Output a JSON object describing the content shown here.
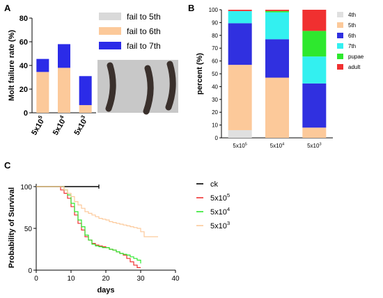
{
  "chart_data": [
    {
      "panel": "A",
      "type": "bar",
      "stacked": true,
      "ylabel": "Molt failure rate (%)",
      "ylim": [
        0,
        80
      ],
      "yticks": [
        0,
        20,
        40,
        60,
        80
      ],
      "categories": [
        "5x10^5",
        "5x10^4",
        "5x10^3"
      ],
      "category_labels": [
        {
          "base": "5x10",
          "exp": "5"
        },
        {
          "base": "5x10",
          "exp": "4"
        },
        {
          "base": "5x10",
          "exp": "3"
        }
      ],
      "series": [
        {
          "name": "fail to 5th",
          "color": "#d9d9d9",
          "values": [
            0,
            0,
            0
          ]
        },
        {
          "name": "fail to 6th",
          "color": "#fcc99a",
          "values": [
            34.5,
            38,
            6.5
          ]
        },
        {
          "name": "fail to 7th",
          "color": "#2b2be8",
          "values": [
            11,
            20,
            24.5
          ]
        }
      ],
      "legend_position": "top-right",
      "inset_photo": "three-larvae-photo"
    },
    {
      "panel": "B",
      "type": "bar",
      "stacked": true,
      "ylabel": "percent (%)",
      "ylim": [
        0,
        100
      ],
      "yticks": [
        0,
        10,
        20,
        30,
        40,
        50,
        60,
        70,
        80,
        90,
        100
      ],
      "categories": [
        "5x10^5",
        "5x10^4",
        "5x10^3"
      ],
      "category_labels": [
        {
          "base": "5x10",
          "exp": "5"
        },
        {
          "base": "5x10",
          "exp": "4"
        },
        {
          "base": "5x10",
          "exp": "3"
        }
      ],
      "series": [
        {
          "name": "4th",
          "color": "#e0e0e0",
          "values": [
            6,
            0,
            0
          ]
        },
        {
          "name": "5th",
          "color": "#fcc99a",
          "values": [
            51,
            47,
            8
          ]
        },
        {
          "name": "6th",
          "color": "#3030e0",
          "values": [
            32.5,
            30,
            34.5
          ]
        },
        {
          "name": "7th",
          "color": "#33f0f0",
          "values": [
            9.5,
            21,
            21
          ]
        },
        {
          "name": "pupae",
          "color": "#2ee82e",
          "values": [
            0,
            1,
            20
          ]
        },
        {
          "name": "adult",
          "color": "#f03030",
          "values": [
            1,
            1,
            16.5
          ]
        }
      ],
      "legend_position": "right"
    },
    {
      "panel": "C",
      "type": "line",
      "step": true,
      "xlabel": "days",
      "ylabel": "Probability of Survival",
      "xlim": [
        0,
        40
      ],
      "ylim": [
        0,
        100
      ],
      "xticks": [
        0,
        10,
        20,
        30,
        40
      ],
      "yticks": [
        0,
        50,
        100
      ],
      "legend_position": "right",
      "series": [
        {
          "name": "ck",
          "label": {
            "base": "ck",
            "exp": ""
          },
          "color": "#000000",
          "points": [
            [
              0,
              100
            ],
            [
              18,
              100
            ]
          ]
        },
        {
          "name": "5x10^5",
          "label": {
            "base": "5x10",
            "exp": "5"
          },
          "color": "#f03030",
          "points": [
            [
              0,
              100
            ],
            [
              6,
              100
            ],
            [
              7,
              96
            ],
            [
              8,
              92
            ],
            [
              9,
              86
            ],
            [
              10,
              76
            ],
            [
              11,
              66
            ],
            [
              12,
              56
            ],
            [
              13,
              48
            ],
            [
              14,
              40
            ],
            [
              15,
              36
            ],
            [
              16,
              32
            ],
            [
              17,
              30
            ],
            [
              18,
              29
            ],
            [
              19,
              28
            ],
            [
              20,
              27
            ],
            [
              21,
              25
            ],
            [
              22,
              24
            ],
            [
              23,
              22
            ],
            [
              24,
              20
            ],
            [
              25,
              18
            ],
            [
              26,
              14
            ],
            [
              27,
              10
            ],
            [
              28,
              6
            ],
            [
              29,
              3
            ],
            [
              30,
              3
            ]
          ]
        },
        {
          "name": "5x10^4",
          "label": {
            "base": "5x10",
            "exp": "4"
          },
          "color": "#2ee82e",
          "points": [
            [
              0,
              100
            ],
            [
              7,
              100
            ],
            [
              8,
              96
            ],
            [
              9,
              90
            ],
            [
              10,
              80
            ],
            [
              11,
              70
            ],
            [
              12,
              60
            ],
            [
              13,
              52
            ],
            [
              14,
              42
            ],
            [
              15,
              36
            ],
            [
              16,
              31
            ],
            [
              17,
              29
            ],
            [
              18,
              28
            ],
            [
              19,
              27
            ],
            [
              20,
              27
            ],
            [
              21,
              25
            ],
            [
              22,
              24
            ],
            [
              23,
              22
            ],
            [
              24,
              20
            ],
            [
              25,
              19
            ],
            [
              26,
              18
            ],
            [
              27,
              16
            ],
            [
              28,
              14
            ],
            [
              29,
              12
            ],
            [
              30,
              10
            ],
            [
              30,
              8
            ]
          ]
        },
        {
          "name": "5x10^3",
          "label": {
            "base": "5x10",
            "exp": "3"
          },
          "color": "#fcc99a",
          "points": [
            [
              0,
              100
            ],
            [
              7,
              100
            ],
            [
              8,
              96
            ],
            [
              9,
              92
            ],
            [
              10,
              88
            ],
            [
              11,
              82
            ],
            [
              12,
              78
            ],
            [
              13,
              74
            ],
            [
              14,
              70
            ],
            [
              15,
              68
            ],
            [
              16,
              66
            ],
            [
              17,
              64
            ],
            [
              18,
              62
            ],
            [
              19,
              61
            ],
            [
              20,
              60
            ],
            [
              21,
              58
            ],
            [
              22,
              57
            ],
            [
              23,
              56
            ],
            [
              24,
              55
            ],
            [
              25,
              54
            ],
            [
              26,
              53
            ],
            [
              27,
              52
            ],
            [
              28,
              51
            ],
            [
              29,
              50
            ],
            [
              30,
              46
            ],
            [
              31,
              40
            ],
            [
              35,
              40
            ]
          ]
        }
      ]
    }
  ],
  "panel_letters": {
    "a": "A",
    "b": "B",
    "c": "C"
  },
  "photo": {
    "background": "#c8c8c8",
    "larva_color": "#3a302c"
  }
}
